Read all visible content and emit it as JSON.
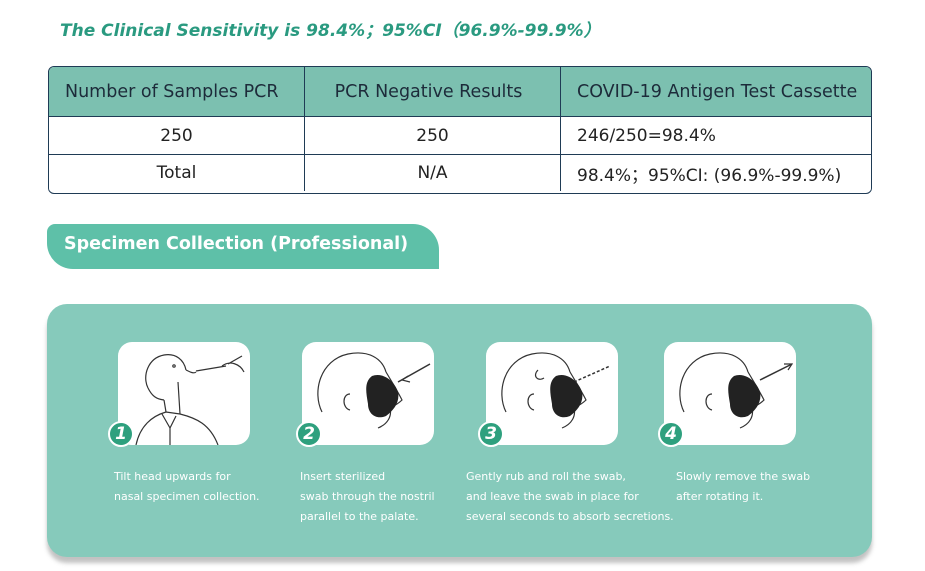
{
  "headline": "The Clinical Sensitivity is 98.4%；95%CI（96.9%-99.9%）",
  "table": {
    "headers": [
      "Number of Samples PCR",
      "PCR Negative Results",
      "COVID-19 Antigen Test  Cassette"
    ],
    "rows": [
      [
        "250",
        "250",
        "246/250=98.4%"
      ],
      [
        "Total",
        "N/A",
        "98.4%；95%CI: (96.9%-99.9%)"
      ]
    ]
  },
  "section": {
    "title": "Specimen Collection (Professional)"
  },
  "steps": [
    {
      "number": "1",
      "lines": [
        "Tilt head upwards for",
        "nasal specimen collection."
      ]
    },
    {
      "number": "2",
      "lines": [
        "Insert sterilized",
        "swab through the nostril",
        "parallel to the palate."
      ]
    },
    {
      "number": "3",
      "lines": [
        "Gently rub and roll the swab,",
        "and leave the swab in place for",
        "several seconds to absorb secretions."
      ]
    },
    {
      "number": "4",
      "lines": [
        "Slowly remove the swab",
        "after rotating it."
      ]
    }
  ],
  "colors": {
    "accent": "#2a9a80",
    "tab": "#5ec0a8",
    "panel": "#86cabb",
    "table_header": "#7cc0b0",
    "border": "#1f3b55"
  }
}
